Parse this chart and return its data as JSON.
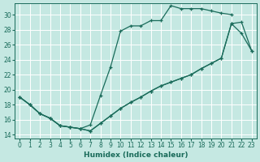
{
  "xlabel": "Humidex (Indice chaleur)",
  "xlim": [
    -0.5,
    23.5
  ],
  "ylim": [
    13.5,
    31.5
  ],
  "xticks": [
    0,
    1,
    2,
    3,
    4,
    5,
    6,
    7,
    8,
    9,
    10,
    11,
    12,
    13,
    14,
    15,
    16,
    17,
    18,
    19,
    20,
    21,
    22,
    23
  ],
  "yticks": [
    14,
    16,
    18,
    20,
    22,
    24,
    26,
    28,
    30
  ],
  "bg_color": "#c5e8e2",
  "grid_color": "#ffffff",
  "line_color": "#1a6b5a",
  "line1_x": [
    0,
    1,
    2,
    3,
    4,
    5,
    6,
    7,
    8,
    9,
    10,
    11,
    12,
    13,
    14,
    15,
    16,
    17,
    18,
    19,
    20,
    21
  ],
  "line1_y": [
    19,
    18,
    16.8,
    16.2,
    15.2,
    15.0,
    14.8,
    15.3,
    19.2,
    23.0,
    27.8,
    28.5,
    28.5,
    29.2,
    29.2,
    31.2,
    30.8,
    30.8,
    30.8,
    30.5,
    30.2,
    30.0
  ],
  "line2_x": [
    0,
    1,
    2,
    3,
    4,
    5,
    6,
    7,
    8,
    9,
    10,
    11,
    12,
    13,
    14,
    15,
    16,
    17,
    18,
    19,
    20,
    21,
    22,
    23
  ],
  "line2_y": [
    19,
    18,
    16.8,
    16.2,
    15.2,
    15.0,
    14.8,
    14.5,
    15.5,
    16.5,
    17.5,
    18.3,
    19.0,
    19.8,
    20.5,
    21.0,
    21.5,
    22.0,
    22.8,
    23.5,
    24.2,
    28.8,
    29.0,
    25.2
  ],
  "line3_x": [
    0,
    1,
    2,
    3,
    4,
    5,
    6,
    7,
    8,
    9,
    10,
    11,
    12,
    13,
    14,
    15,
    16,
    17,
    18,
    19,
    20,
    21,
    22,
    23
  ],
  "line3_y": [
    19,
    18,
    16.8,
    16.2,
    15.2,
    15.0,
    14.8,
    14.5,
    15.5,
    16.5,
    17.5,
    18.3,
    19.0,
    19.8,
    20.5,
    21.0,
    21.5,
    22.0,
    22.8,
    23.5,
    24.2,
    28.8,
    27.5,
    25.2
  ]
}
